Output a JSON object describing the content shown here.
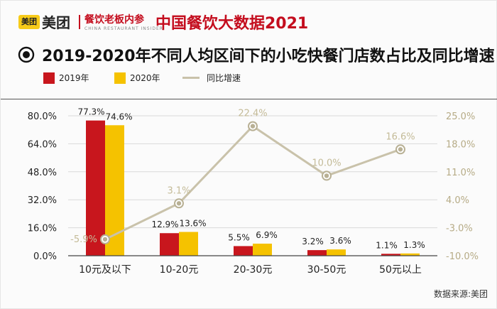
{
  "header": {
    "logo_mark": "美团",
    "logo_text": "美团",
    "sub_brand": "餐饮老板内参",
    "sub_brand_en": "CHINA RESTAURANT INSIDER",
    "brand_title": "中国餐饮大数据2021"
  },
  "subtitle": "2019-2020年不同人均区间下的小吃快餐门店数占比及同比增速",
  "legend": [
    {
      "label": "2019年",
      "color": "#c8161d",
      "kind": "bar"
    },
    {
      "label": "2020年",
      "color": "#f5c200",
      "kind": "bar"
    },
    {
      "label": "同比增速",
      "color": "#c9c2aa",
      "kind": "line"
    }
  ],
  "source": "数据来源:美团",
  "chart_data": {
    "type": "bar",
    "categories": [
      "10元及以下",
      "10-20元",
      "20-30元",
      "30-50元",
      "50元以上"
    ],
    "series": [
      {
        "name": "2019年",
        "type": "bar",
        "axis": "left",
        "color": "#c8161d",
        "values": [
          77.3,
          12.9,
          5.5,
          3.2,
          1.1
        ],
        "labels": [
          "77.3%",
          "12.9%",
          "5.5%",
          "3.2%",
          "1.1%"
        ]
      },
      {
        "name": "2020年",
        "type": "bar",
        "axis": "left",
        "color": "#f5c200",
        "values": [
          74.6,
          13.6,
          6.9,
          3.6,
          1.3
        ],
        "labels": [
          "74.6%",
          "13.6%",
          "6.9%",
          "3.6%",
          "1.3%"
        ]
      },
      {
        "name": "同比增速",
        "type": "line",
        "axis": "right",
        "color": "#c9c2aa",
        "values": [
          -5.9,
          3.1,
          22.4,
          10.0,
          16.6
        ],
        "labels": [
          "-5.9%",
          "3.1%",
          "22.4%",
          "10.0%",
          "16.6%"
        ]
      }
    ],
    "y_left": {
      "min": 0,
      "max": 80,
      "ticks": [
        0,
        16,
        32,
        48,
        64,
        80
      ],
      "tick_labels": [
        "0.0%",
        "16.0%",
        "32.0%",
        "48.0%",
        "64.0%",
        "80.0%"
      ]
    },
    "y_right": {
      "min": -10,
      "max": 25,
      "ticks": [
        -10,
        -3,
        4,
        11,
        18,
        25
      ],
      "tick_labels": [
        "-10.0%",
        "-3.0%",
        "4.0%",
        "11.0%",
        "18.0%",
        "25.0%"
      ]
    },
    "grid": true,
    "legend_position": "top-left"
  }
}
